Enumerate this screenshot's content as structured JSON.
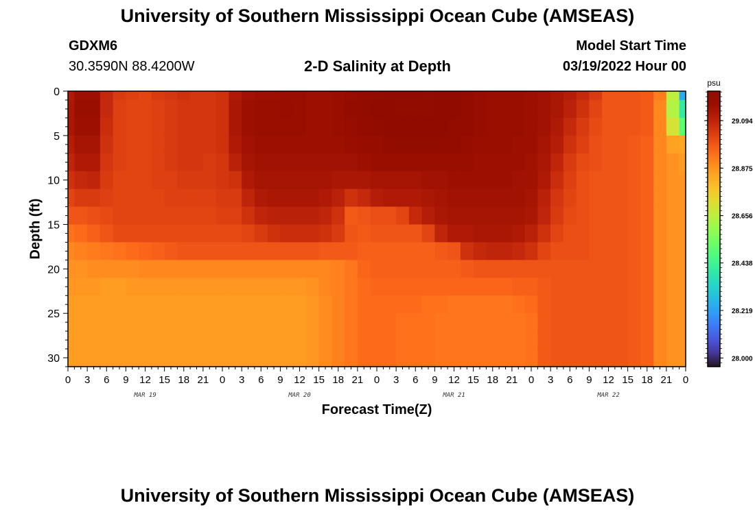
{
  "header": {
    "title": "University of Southern Mississippi Ocean Cube (AMSEAS)",
    "station_id": "GDXM6",
    "station_coords": "30.3590N  88.4200W",
    "subtitle": "2-D Salinity at Depth",
    "model_start_label": "Model Start Time",
    "model_start_value": "03/19/2022 Hour 00"
  },
  "footer": {
    "title": "University of Southern Mississippi Ocean Cube (AMSEAS)"
  },
  "chart_data": {
    "type": "heatmap",
    "title": "2-D Salinity at Depth",
    "xlabel": "Forecast Time(Z)",
    "ylabel": "Depth (ft)",
    "x_units": "hours since 03/19/2022 00Z",
    "xlim": [
      0,
      96
    ],
    "ylim": [
      0,
      31
    ],
    "x_ticks": [
      0,
      3,
      6,
      9,
      12,
      15,
      18,
      21,
      24,
      27,
      30,
      33,
      36,
      39,
      42,
      45,
      48,
      51,
      54,
      57,
      60,
      63,
      66,
      69,
      72,
      75,
      78,
      81,
      84,
      87,
      90,
      93,
      96
    ],
    "x_tick_labels": [
      "0",
      "3",
      "6",
      "9",
      "12",
      "15",
      "18",
      "21",
      "0",
      "3",
      "6",
      "9",
      "12",
      "15",
      "18",
      "21",
      "0",
      "3",
      "6",
      "9",
      "12",
      "15",
      "18",
      "21",
      "0",
      "3",
      "6",
      "9",
      "12",
      "15",
      "18",
      "21",
      "0"
    ],
    "date_labels": [
      {
        "label": "MAR 19",
        "hour": 12
      },
      {
        "label": "MAR 20",
        "hour": 36
      },
      {
        "label": "MAR 21",
        "hour": 60
      },
      {
        "label": "MAR 22",
        "hour": 84
      }
    ],
    "y_ticks": [
      0,
      5,
      10,
      15,
      20,
      25,
      30
    ],
    "y_tick_labels": [
      "0",
      "5",
      "10",
      "15",
      "20",
      "25",
      "30"
    ],
    "colorbar": {
      "unit": "psu",
      "min": 27.96,
      "max": 29.23,
      "ticks": [
        28.0,
        28.219,
        28.438,
        28.656,
        28.875,
        29.094
      ],
      "tick_labels": [
        "28.000",
        "28.219",
        "28.438",
        "28.656",
        "28.875",
        "29.094"
      ]
    },
    "grid": {
      "hours": [
        0,
        2,
        4,
        6,
        8,
        10,
        12,
        14,
        16,
        18,
        20,
        22,
        24,
        26,
        28,
        30,
        32,
        34,
        36,
        38,
        40,
        42,
        44,
        46,
        48,
        50,
        52,
        54,
        56,
        58,
        60,
        62,
        64,
        66,
        68,
        70,
        72,
        74,
        76,
        78,
        80,
        82,
        84,
        86,
        88,
        90,
        92,
        94,
        96
      ],
      "depths_ft": [
        0,
        2,
        4,
        6,
        8,
        10,
        12,
        14,
        16,
        18,
        20,
        22,
        24,
        26,
        28,
        30
      ],
      "salinity_psu": [
        [
          29.12,
          29.16,
          29.16,
          29.08,
          29.04,
          29.03,
          29.02,
          29.04,
          29.05,
          29.06,
          29.05,
          29.05,
          29.06,
          29.12,
          29.15,
          29.16,
          29.16,
          29.17,
          29.17,
          29.16,
          29.16,
          29.17,
          29.18,
          29.19,
          29.2,
          29.21,
          29.22,
          29.22,
          29.23,
          29.22,
          29.21,
          29.19,
          29.18,
          29.17,
          29.17,
          29.17,
          29.16,
          29.15,
          29.13,
          29.11,
          29.08,
          29.04,
          28.99,
          28.99,
          28.99,
          28.98,
          28.92,
          28.66,
          28.24
        ],
        [
          29.13,
          29.17,
          29.17,
          29.08,
          29.03,
          29.02,
          29.02,
          29.03,
          29.04,
          29.05,
          29.05,
          29.05,
          29.06,
          29.13,
          29.16,
          29.17,
          29.17,
          29.18,
          29.17,
          29.16,
          29.16,
          29.17,
          29.19,
          29.2,
          29.21,
          29.22,
          29.23,
          29.23,
          29.23,
          29.22,
          29.21,
          29.19,
          29.18,
          29.17,
          29.17,
          29.17,
          29.16,
          29.15,
          29.13,
          29.1,
          29.06,
          29.02,
          28.99,
          28.99,
          28.99,
          28.98,
          28.9,
          28.64,
          28.4
        ],
        [
          29.13,
          29.16,
          29.16,
          29.07,
          29.03,
          29.02,
          29.02,
          29.03,
          29.04,
          29.05,
          29.05,
          29.05,
          29.06,
          29.13,
          29.16,
          29.17,
          29.17,
          29.17,
          29.17,
          29.16,
          29.16,
          29.17,
          29.18,
          29.19,
          29.2,
          29.21,
          29.22,
          29.22,
          29.22,
          29.21,
          29.2,
          29.19,
          29.18,
          29.17,
          29.17,
          29.17,
          29.16,
          29.15,
          29.12,
          29.08,
          29.04,
          29.01,
          28.99,
          28.99,
          28.99,
          28.98,
          28.9,
          28.7,
          28.5
        ],
        [
          29.11,
          29.14,
          29.14,
          29.06,
          29.03,
          29.02,
          29.02,
          29.03,
          29.04,
          29.05,
          29.05,
          29.05,
          29.06,
          29.12,
          29.15,
          29.16,
          29.16,
          29.16,
          29.16,
          29.16,
          29.16,
          29.16,
          29.17,
          29.18,
          29.18,
          29.19,
          29.2,
          29.2,
          29.2,
          29.2,
          29.19,
          29.18,
          29.17,
          29.17,
          29.17,
          29.16,
          29.16,
          29.14,
          29.11,
          29.06,
          29.03,
          29.0,
          28.99,
          28.99,
          28.98,
          28.97,
          28.9,
          28.85,
          28.84
        ],
        [
          29.09,
          29.12,
          29.12,
          29.05,
          29.03,
          29.02,
          29.02,
          29.03,
          29.04,
          29.05,
          29.05,
          29.04,
          29.05,
          29.1,
          29.14,
          29.15,
          29.15,
          29.15,
          29.15,
          29.15,
          29.15,
          29.15,
          29.15,
          29.16,
          29.17,
          29.17,
          29.17,
          29.17,
          29.17,
          29.17,
          29.17,
          29.17,
          29.16,
          29.16,
          29.16,
          29.16,
          29.15,
          29.13,
          29.09,
          29.04,
          29.01,
          29.0,
          28.99,
          28.99,
          28.98,
          28.97,
          28.9,
          28.88,
          28.86
        ],
        [
          29.06,
          29.08,
          29.09,
          29.04,
          29.02,
          29.02,
          29.02,
          29.03,
          29.03,
          29.04,
          29.04,
          29.04,
          29.05,
          29.06,
          29.12,
          29.14,
          29.14,
          29.14,
          29.14,
          29.14,
          29.14,
          29.13,
          29.13,
          29.13,
          29.14,
          29.14,
          29.14,
          29.14,
          29.15,
          29.15,
          29.16,
          29.16,
          29.16,
          29.16,
          29.16,
          29.15,
          29.15,
          29.12,
          29.07,
          29.03,
          29.0,
          28.99,
          28.99,
          28.99,
          28.98,
          28.97,
          28.9,
          28.88,
          28.87
        ],
        [
          29.02,
          29.04,
          29.04,
          29.03,
          29.02,
          29.02,
          29.02,
          29.02,
          29.03,
          29.03,
          29.03,
          29.03,
          29.04,
          29.04,
          29.09,
          29.12,
          29.13,
          29.13,
          29.13,
          29.13,
          29.12,
          29.1,
          29.06,
          29.08,
          29.11,
          29.12,
          29.12,
          29.12,
          29.13,
          29.14,
          29.15,
          29.15,
          29.15,
          29.15,
          29.15,
          29.15,
          29.14,
          29.1,
          29.05,
          29.02,
          29.0,
          28.99,
          28.99,
          28.99,
          28.98,
          28.97,
          28.9,
          28.88,
          28.87
        ],
        [
          28.99,
          28.99,
          29.0,
          29.01,
          29.02,
          29.02,
          29.02,
          29.02,
          29.02,
          29.02,
          29.02,
          29.02,
          29.03,
          29.03,
          29.06,
          29.09,
          29.1,
          29.1,
          29.1,
          29.1,
          29.09,
          29.06,
          28.98,
          28.99,
          29.0,
          29.0,
          29.02,
          29.08,
          29.11,
          29.13,
          29.14,
          29.14,
          29.14,
          29.14,
          29.14,
          29.14,
          29.13,
          29.09,
          29.04,
          29.01,
          29.0,
          28.99,
          28.99,
          28.99,
          28.98,
          28.97,
          28.9,
          28.88,
          28.87
        ],
        [
          28.94,
          28.95,
          28.97,
          28.99,
          29.01,
          29.01,
          29.01,
          29.01,
          29.01,
          29.01,
          29.01,
          29.01,
          29.01,
          29.01,
          29.02,
          29.04,
          29.06,
          29.07,
          29.07,
          29.07,
          29.06,
          29.04,
          28.99,
          28.98,
          28.99,
          28.99,
          28.99,
          28.99,
          29.02,
          29.09,
          29.12,
          29.12,
          29.13,
          29.13,
          29.13,
          29.12,
          29.1,
          29.06,
          29.02,
          29.0,
          29.0,
          28.99,
          28.99,
          28.99,
          28.98,
          28.97,
          28.9,
          28.88,
          28.87
        ],
        [
          28.9,
          28.91,
          28.92,
          28.93,
          28.94,
          28.95,
          28.96,
          28.97,
          28.98,
          28.99,
          28.99,
          28.99,
          28.99,
          28.99,
          28.99,
          28.99,
          28.99,
          28.99,
          28.99,
          28.99,
          28.98,
          28.98,
          28.98,
          28.97,
          28.97,
          28.97,
          28.97,
          28.97,
          28.97,
          28.98,
          28.99,
          29.06,
          29.08,
          29.09,
          29.09,
          29.08,
          29.06,
          29.02,
          29.0,
          29.0,
          29.0,
          28.99,
          28.99,
          28.99,
          28.98,
          28.97,
          28.9,
          28.88,
          28.87
        ],
        [
          28.88,
          28.88,
          28.89,
          28.89,
          28.89,
          28.89,
          28.9,
          28.9,
          28.9,
          28.9,
          28.9,
          28.9,
          28.9,
          28.9,
          28.9,
          28.9,
          28.9,
          28.9,
          28.9,
          28.9,
          28.9,
          28.91,
          28.93,
          28.96,
          28.97,
          28.97,
          28.97,
          28.97,
          28.97,
          28.97,
          28.97,
          28.98,
          28.99,
          28.99,
          28.99,
          28.99,
          28.99,
          28.99,
          28.99,
          28.99,
          28.99,
          28.99,
          28.99,
          28.99,
          28.98,
          28.97,
          28.9,
          28.88,
          28.87
        ],
        [
          28.87,
          28.87,
          28.87,
          28.86,
          28.86,
          28.87,
          28.87,
          28.87,
          28.87,
          28.87,
          28.87,
          28.87,
          28.87,
          28.87,
          28.87,
          28.87,
          28.87,
          28.87,
          28.87,
          28.88,
          28.9,
          28.91,
          28.93,
          28.95,
          28.96,
          28.96,
          28.96,
          28.96,
          28.96,
          28.96,
          28.96,
          28.96,
          28.96,
          28.96,
          28.96,
          28.97,
          28.97,
          28.98,
          28.99,
          28.99,
          28.99,
          28.99,
          28.99,
          28.99,
          28.98,
          28.97,
          28.9,
          28.88,
          28.87
        ],
        [
          28.86,
          28.86,
          28.86,
          28.86,
          28.86,
          28.86,
          28.86,
          28.86,
          28.86,
          28.86,
          28.86,
          28.86,
          28.86,
          28.86,
          28.86,
          28.86,
          28.86,
          28.86,
          28.86,
          28.87,
          28.89,
          28.91,
          28.93,
          28.95,
          28.95,
          28.95,
          28.95,
          28.95,
          28.94,
          28.94,
          28.93,
          28.93,
          28.93,
          28.93,
          28.93,
          28.94,
          28.95,
          28.98,
          28.99,
          28.99,
          28.99,
          28.99,
          28.99,
          28.99,
          28.98,
          28.97,
          28.9,
          28.88,
          28.87
        ],
        [
          28.86,
          28.86,
          28.86,
          28.86,
          28.86,
          28.86,
          28.86,
          28.86,
          28.86,
          28.86,
          28.86,
          28.86,
          28.86,
          28.86,
          28.86,
          28.86,
          28.86,
          28.86,
          28.86,
          28.87,
          28.89,
          28.91,
          28.93,
          28.95,
          28.95,
          28.95,
          28.94,
          28.94,
          28.94,
          28.93,
          28.93,
          28.93,
          28.93,
          28.93,
          28.93,
          28.93,
          28.94,
          28.98,
          28.99,
          28.99,
          28.99,
          28.99,
          28.99,
          28.99,
          28.98,
          28.97,
          28.9,
          28.88,
          28.87
        ],
        [
          28.86,
          28.86,
          28.86,
          28.86,
          28.86,
          28.86,
          28.86,
          28.86,
          28.86,
          28.86,
          28.86,
          28.86,
          28.86,
          28.86,
          28.86,
          28.86,
          28.86,
          28.86,
          28.86,
          28.87,
          28.89,
          28.91,
          28.93,
          28.95,
          28.95,
          28.95,
          28.94,
          28.94,
          28.94,
          28.93,
          28.93,
          28.93,
          28.93,
          28.93,
          28.93,
          28.93,
          28.94,
          28.98,
          28.99,
          28.99,
          28.99,
          28.99,
          28.99,
          28.99,
          28.98,
          28.97,
          28.9,
          28.88,
          28.87
        ],
        [
          28.86,
          28.86,
          28.86,
          28.86,
          28.86,
          28.86,
          28.86,
          28.86,
          28.86,
          28.86,
          28.86,
          28.86,
          28.86,
          28.86,
          28.86,
          28.86,
          28.86,
          28.86,
          28.86,
          28.87,
          28.89,
          28.91,
          28.93,
          28.95,
          28.95,
          28.95,
          28.94,
          28.94,
          28.94,
          28.93,
          28.93,
          28.93,
          28.93,
          28.93,
          28.93,
          28.93,
          28.94,
          28.98,
          28.99,
          28.99,
          28.99,
          28.99,
          28.99,
          28.99,
          28.98,
          28.97,
          28.9,
          28.88,
          28.87
        ]
      ]
    }
  }
}
